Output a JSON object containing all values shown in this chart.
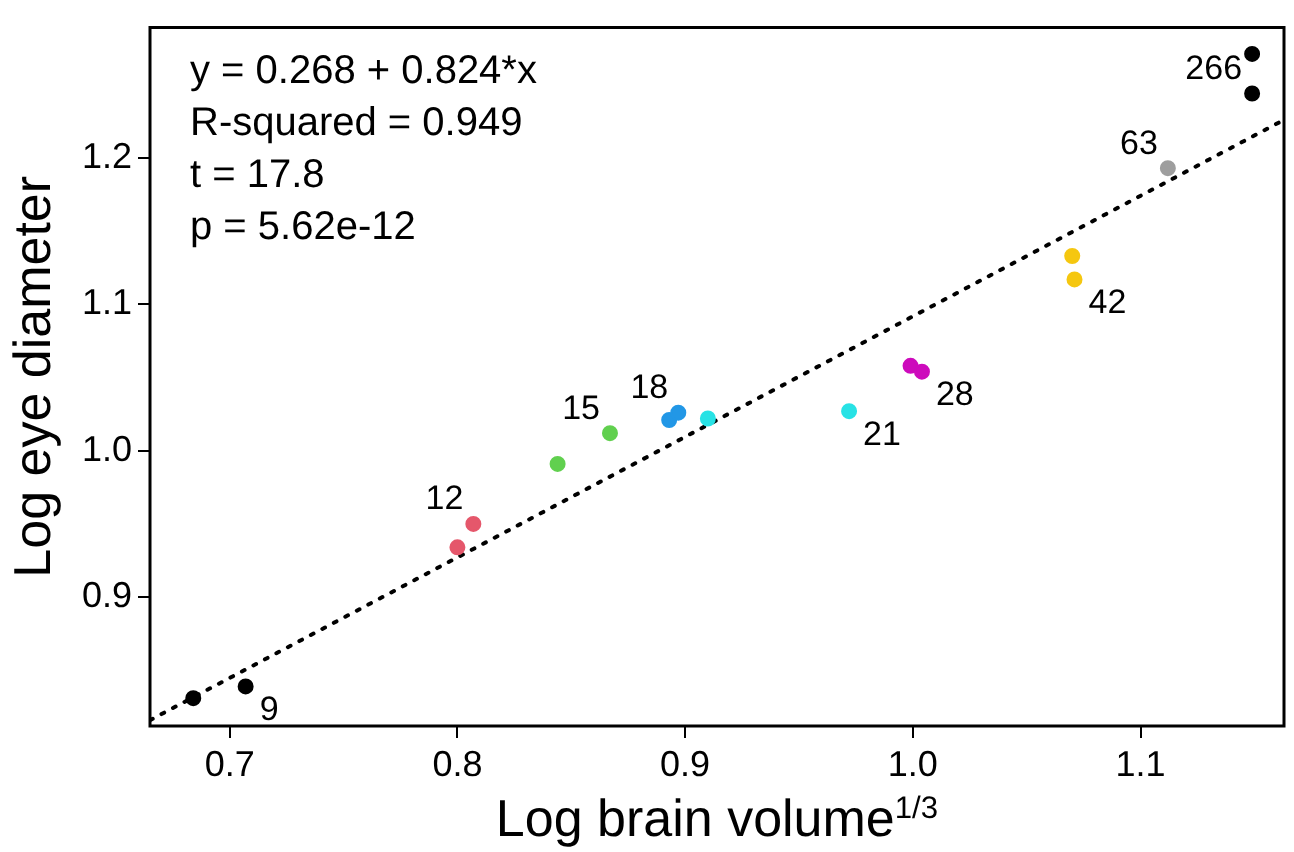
{
  "chart_data": {
    "type": "scatter",
    "xlabel": "Log brain volume$^{1/3}$",
    "ylabel": "Log eye diameter",
    "xlim": [
      0.665,
      1.163
    ],
    "ylim": [
      0.812,
      1.289
    ],
    "xticks": [
      0.7,
      0.8,
      0.9,
      {
        "value": 1,
        "label": "1.0"
      },
      1.1
    ],
    "yticks": [
      0.9,
      {
        "value": 1,
        "label": "1.0"
      },
      1.1,
      1.2
    ],
    "grid": false,
    "legend": false,
    "marker": "circle",
    "series": [
      {
        "color": "#000000",
        "x": [
          0.684,
          0.707
        ],
        "values": [
          0.831,
          0.839
        ]
      },
      {
        "color": "#e5576b",
        "x": [
          0.8,
          0.807
        ],
        "values": [
          0.934,
          0.95
        ]
      },
      {
        "color": "#61d04f",
        "x": [
          0.844,
          0.867
        ],
        "values": [
          0.991,
          1.012
        ]
      },
      {
        "color": "#2297e6",
        "x": [
          0.893,
          0.897
        ],
        "values": [
          1.021,
          1.026
        ]
      },
      {
        "color": "#28e2e5",
        "x": [
          0.91,
          0.972
        ],
        "values": [
          1.022,
          1.027
        ]
      },
      {
        "color": "#cd0bbc",
        "x": [
          0.999,
          1.004
        ],
        "values": [
          1.058,
          1.054
        ]
      },
      {
        "color": "#f5c710",
        "x": [
          1.07,
          1.071
        ],
        "values": [
          1.133,
          1.117
        ]
      },
      {
        "color": "#9e9e9e",
        "x": [
          1.112
        ],
        "values": [
          1.193
        ]
      },
      {
        "color": "#000000",
        "x": [
          1.149,
          1.149
        ],
        "values": [
          1.271,
          1.244
        ]
      },
      {
        "type": "line",
        "color": "#000000",
        "x": [
          0.665,
          1.163
        ],
        "values": [
          0.816,
          1.226
        ],
        "line_style": "dotted",
        "marker": "none"
      }
    ],
    "annotations": [
      "y = 0.268 + 0.824*x",
      "R-squared = 0.949",
      "t = 17.8",
      "p = 5.62e-12",
      {
        "text": "9",
        "x": 0.707,
        "y": 0.839
      },
      {
        "text": "12",
        "x": 0.807,
        "y": 0.95
      },
      {
        "text": "15",
        "x": 0.867,
        "y": 1.012
      },
      {
        "text": "18",
        "x": 0.897,
        "y": 1.026
      },
      {
        "text": "21",
        "x": 0.972,
        "y": 1.027
      },
      {
        "text": "28",
        "x": 1.004,
        "y": 1.054
      },
      {
        "text": "42",
        "x": 1.071,
        "y": 1.117
      },
      {
        "text": "63",
        "x": 1.112,
        "y": 1.193
      },
      {
        "text": "266",
        "x": 1.149,
        "y": 1.244
      }
    ]
  }
}
